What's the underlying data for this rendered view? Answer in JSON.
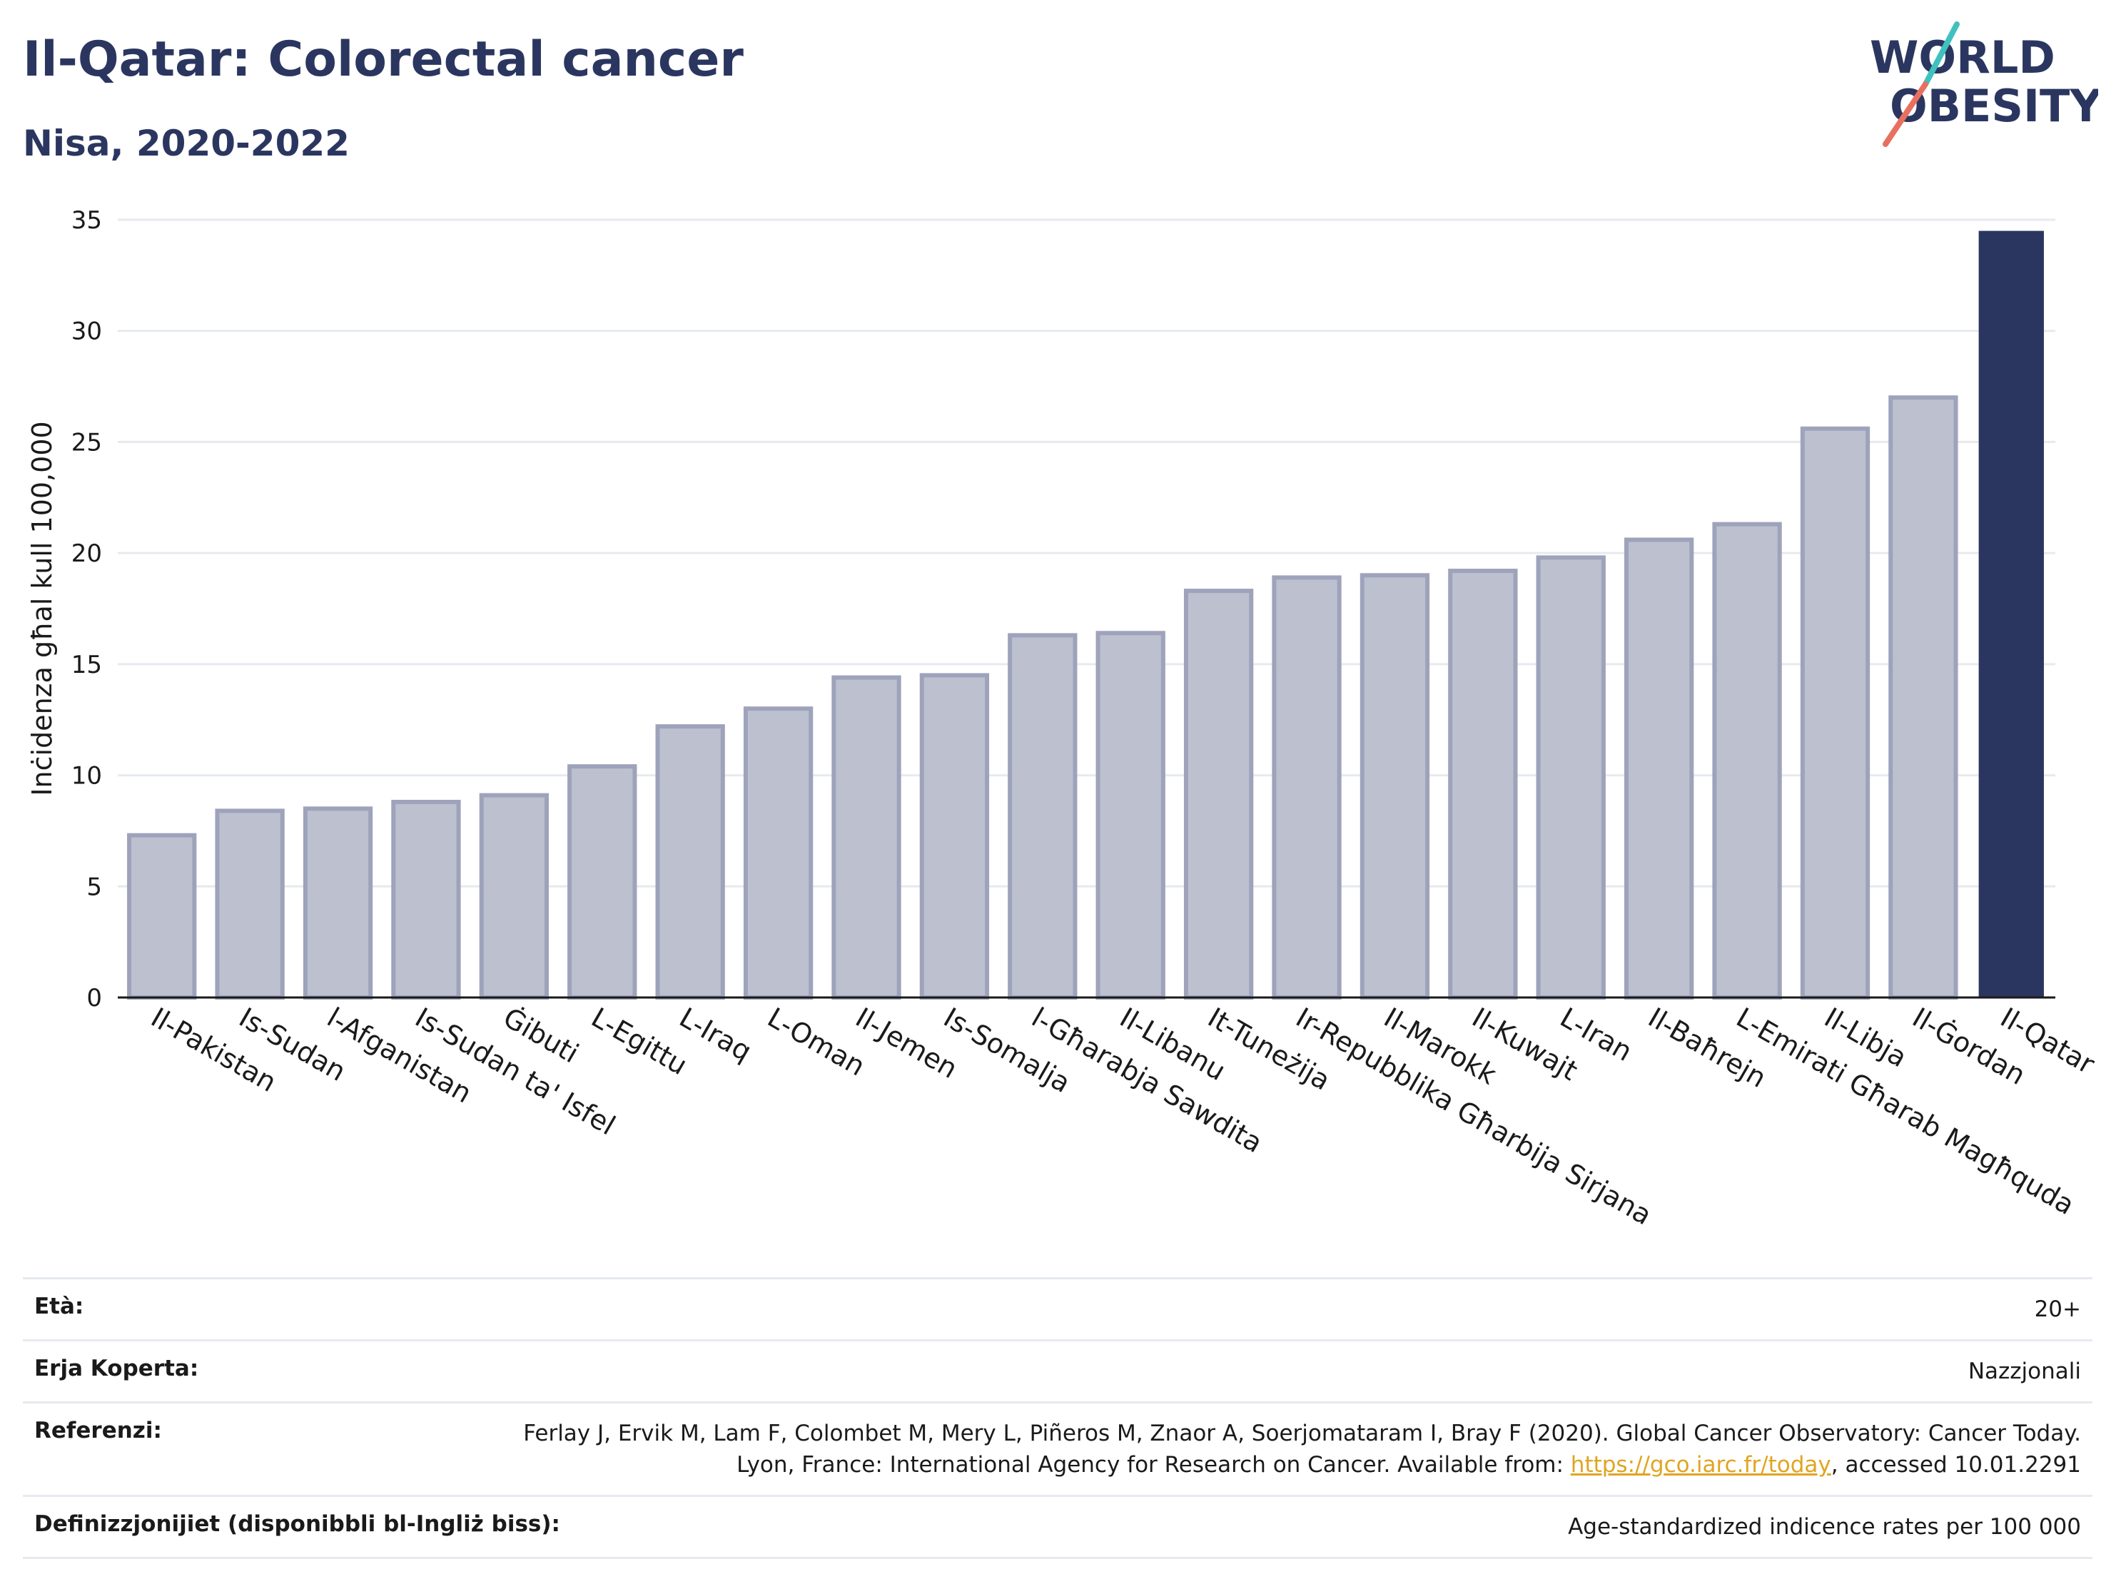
{
  "header": {
    "title": "Il-Qatar: Colorectal cancer",
    "subtitle": "Nisa, 2020-2022",
    "logo_line1": "WORLD",
    "logo_line2": "OBESITY"
  },
  "colors": {
    "text": "#2b3660",
    "bar_default": "#bcc0cf",
    "bar_default_border": "#9ea3bb",
    "bar_highlight": "#2b3660",
    "grid": "#e6eaef",
    "link": "#e0a521",
    "logo_teal": "#3fc1c0",
    "logo_coral": "#e8705f"
  },
  "chart_data": {
    "type": "bar",
    "title": "Il-Qatar: Colorectal cancer",
    "subtitle": "Nisa, 2020-2022",
    "xlabel": "",
    "ylabel": "Inċidenza għal kull 100,000",
    "ylim": [
      0,
      35
    ],
    "yticks": [
      0,
      5,
      10,
      15,
      20,
      25,
      30,
      35
    ],
    "grid": true,
    "highlight": "Il-Qatar",
    "categories": [
      "Il-Pakistan",
      "Is-Sudan",
      "l-Afganistan",
      "Is-Sudan ta' Isfel",
      "Ġibuti",
      "L-Egittu",
      "L-Iraq",
      "L-Oman",
      "Il-Jemen",
      "Is-Somalja",
      "l-Għarabja Sawdita",
      "Il-Libanu",
      "It-Tuneżija",
      "Ir-Repubblika Għarbija Sirjana",
      "Il-Marokk",
      "Il-Kuwajt",
      "L-Iran",
      "Il-Baħrejn",
      "L-Emirati Għarab Magħquda",
      "Il-Libja",
      "Il-Ġordan",
      "Il-Qatar"
    ],
    "values": [
      7.3,
      8.4,
      8.5,
      8.8,
      9.1,
      10.4,
      12.2,
      13.0,
      14.4,
      14.5,
      16.3,
      16.4,
      18.3,
      18.9,
      19.0,
      19.2,
      19.8,
      20.6,
      21.3,
      25.6,
      27.0,
      34.5
    ]
  },
  "info": {
    "age_label": "Età:",
    "age_value": "20+",
    "area_label": "Erja Koperta:",
    "area_value": "Nazzjonali",
    "ref_label": "Referenzi:",
    "ref_text_1": "Ferlay J, Ervik M, Lam F, Colombet M, Mery L, Piñeros M, Znaor A, Soerjomataram I, Bray F (2020). Global Cancer Observatory: Cancer Today. Lyon, France: International Agency for Research on Cancer. Available from: ",
    "ref_link": "https://gco.iarc.fr/today",
    "ref_text_2": ", accessed 10.01.2291",
    "def_label": "Definizzjonijiet (disponibbli bl-Ingliż biss):",
    "def_value": "Age-standardized indicence rates per 100 000"
  }
}
